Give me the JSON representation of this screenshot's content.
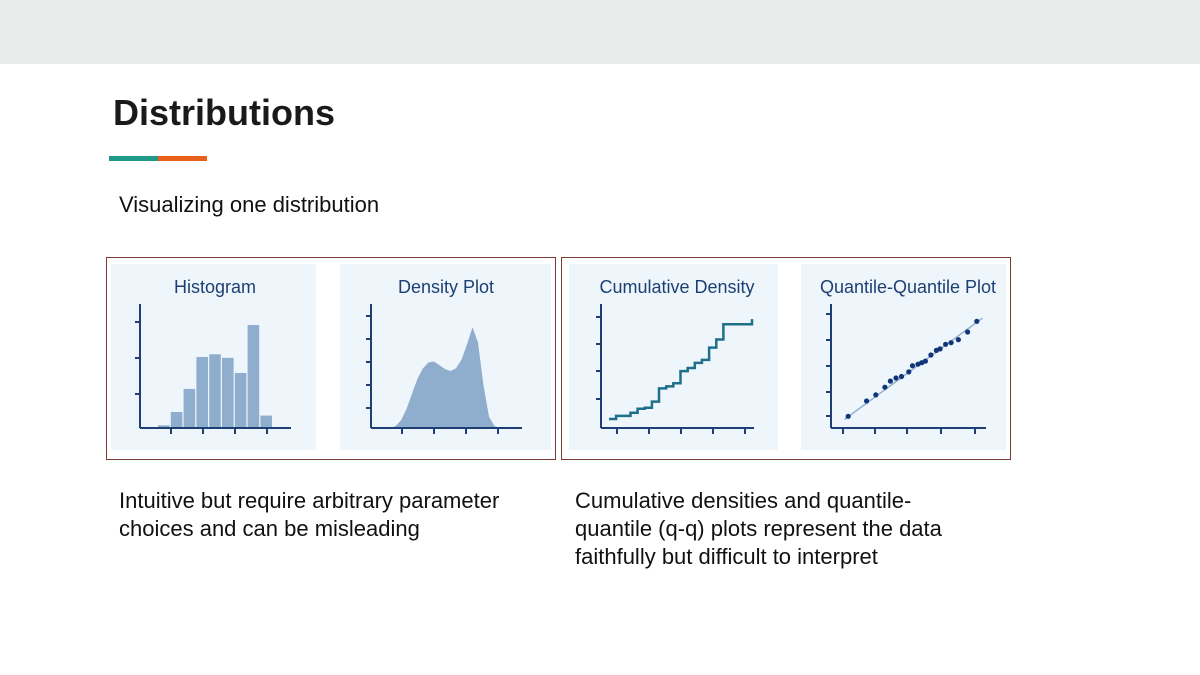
{
  "slide": {
    "title": "Distributions",
    "subtitle": "Visualizing one distribution",
    "caption_left": "Intuitive but require arbitrary parameter choices and can be misleading",
    "caption_right": "Cumulative densities and quantile-quantile (q-q) plots represent the data faithfully but difficult to interpret"
  },
  "colors": {
    "accent_teal": "#1f9a8a",
    "accent_orange": "#e8601c",
    "panel_bg": "#eef6fb",
    "plot_axis": "#1d3f74",
    "plot_fill": "#8fadcd",
    "plot_line": "#1f6f8b",
    "qq_point": "#12357a",
    "qq_line": "#8fb0cf",
    "box_border": "#7a3b33"
  },
  "chart_data": [
    {
      "type": "bar",
      "title": "Histogram",
      "values": [
        0.3,
        1.8,
        4.4,
        8.0,
        8.3,
        7.9,
        6.2,
        11.6,
        1.4
      ],
      "ylim": [
        0,
        12
      ]
    },
    {
      "type": "area",
      "title": "Density Plot",
      "x": [
        0,
        1,
        2,
        3,
        4,
        5,
        6,
        7,
        8,
        9,
        10,
        11,
        12,
        13,
        14,
        15,
        16,
        17,
        18,
        19,
        20
      ],
      "values": [
        0,
        0.2,
        0.8,
        2.0,
        3.6,
        5.2,
        6.3,
        6.9,
        7.0,
        6.6,
        6.2,
        6.0,
        6.3,
        7.2,
        8.8,
        10.6,
        9.0,
        4.5,
        1.2,
        0.2,
        0
      ],
      "ylim": [
        0,
        12
      ]
    },
    {
      "type": "line",
      "title": "Cumulative Density",
      "step": true,
      "x": [
        0,
        1,
        2,
        3,
        4,
        5,
        6,
        7,
        8,
        9,
        10,
        11,
        12,
        13,
        14,
        15,
        16,
        17,
        18,
        19,
        20
      ],
      "values": [
        0.02,
        0.05,
        0.05,
        0.08,
        0.12,
        0.13,
        0.19,
        0.32,
        0.34,
        0.37,
        0.49,
        0.52,
        0.57,
        0.6,
        0.72,
        0.8,
        0.95,
        0.95,
        0.95,
        0.95,
        1.0
      ],
      "ylim": [
        0,
        1.05
      ]
    },
    {
      "type": "scatter",
      "title": "Quantile-Quantile Plot",
      "x": [
        0.0,
        1.0,
        1.5,
        2.0,
        2.3,
        2.6,
        2.9,
        3.3,
        3.5,
        3.8,
        4.0,
        4.2,
        4.5,
        4.8,
        5.0,
        5.3,
        5.6,
        6.0,
        6.5,
        7.0
      ],
      "values": [
        0.0,
        1.0,
        1.4,
        1.9,
        2.3,
        2.5,
        2.6,
        2.9,
        3.3,
        3.4,
        3.5,
        3.6,
        4.0,
        4.3,
        4.4,
        4.7,
        4.8,
        5.0,
        5.5,
        6.2
      ],
      "reference_line": [
        [
          -0.2,
          -0.2
        ],
        [
          7.3,
          6.4
        ]
      ],
      "xlim": [
        -0.5,
        7.5
      ],
      "ylim": [
        -0.5,
        7.0
      ]
    }
  ]
}
